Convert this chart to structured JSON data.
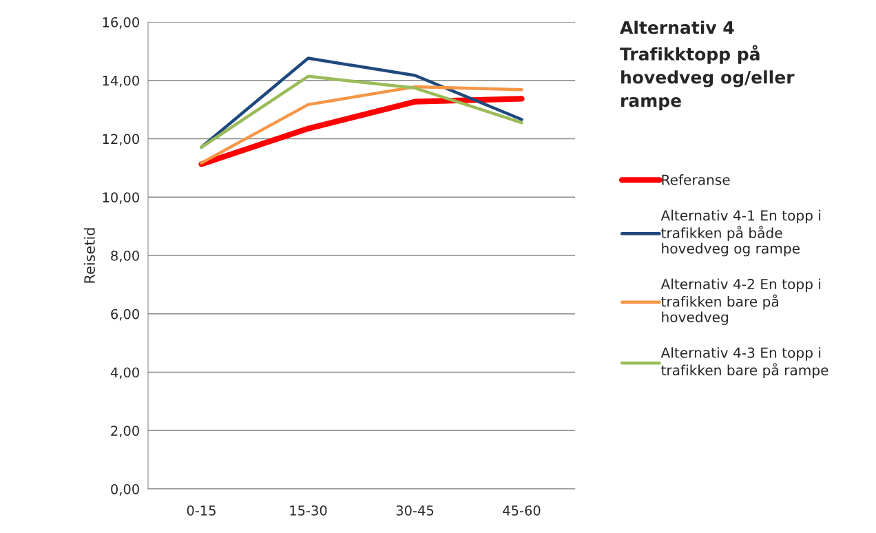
{
  "chart_data": {
    "type": "line",
    "title": "Alternativ 4\nTrafikktopp på\nhovedveg og/eller\nrampe",
    "ylabel": "Reisetid",
    "categories": [
      "0-15",
      "15-30",
      "30-45",
      "45-60"
    ],
    "series": [
      {
        "name": "Referanse",
        "color": "#ff0000",
        "values": [
          11.13,
          12.35,
          13.27,
          13.37
        ]
      },
      {
        "name": "Alternativ 4-1 En topp i\ntrafikken på både\nhovedveg og rampe",
        "color": "#1f497d",
        "values": [
          11.71,
          14.76,
          14.17,
          12.66
        ]
      },
      {
        "name": "Alternativ 4-2 En topp i\ntrafikken bare på\nhovedveg",
        "color": "#f79646",
        "values": [
          11.17,
          13.17,
          13.78,
          13.68
        ]
      },
      {
        "name": "Alternativ 4-3 En topp i\ntrafikken bare på rampe",
        "color": "#9bbb59",
        "values": [
          11.71,
          14.14,
          13.74,
          12.55
        ]
      }
    ],
    "ylim": [
      0,
      16
    ],
    "yticks": [
      {
        "value": 0,
        "label": "0,00"
      },
      {
        "value": 2,
        "label": "2,00"
      },
      {
        "value": 4,
        "label": "4,00"
      },
      {
        "value": 6,
        "label": "6,00"
      },
      {
        "value": 8,
        "label": "8,00"
      },
      {
        "value": 10,
        "label": "10,00"
      },
      {
        "value": 12,
        "label": "12,00"
      },
      {
        "value": 14,
        "label": "14,00"
      },
      {
        "value": 16,
        "label": "16,00"
      }
    ],
    "grid": "y",
    "legend": "right",
    "marker": "none",
    "line_style": "solid"
  }
}
